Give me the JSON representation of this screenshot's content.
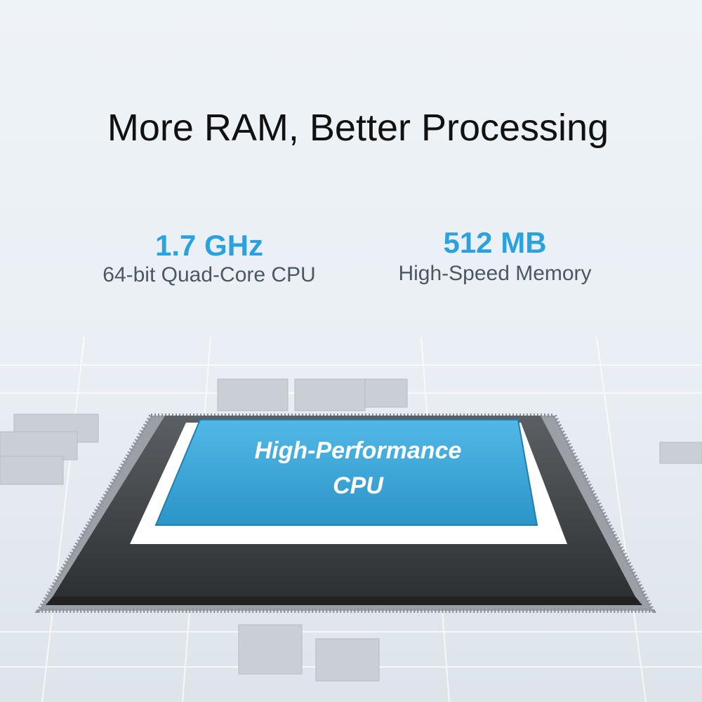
{
  "header": {
    "title": "More RAM, Better Processing"
  },
  "specs": [
    {
      "value": "1.7 GHz",
      "label": "64-bit Quad-Core CPU"
    },
    {
      "value": "512 MB",
      "label": "High-Speed Memory"
    }
  ],
  "chip": {
    "lines": [
      "High-Performance",
      "CPU"
    ]
  }
}
